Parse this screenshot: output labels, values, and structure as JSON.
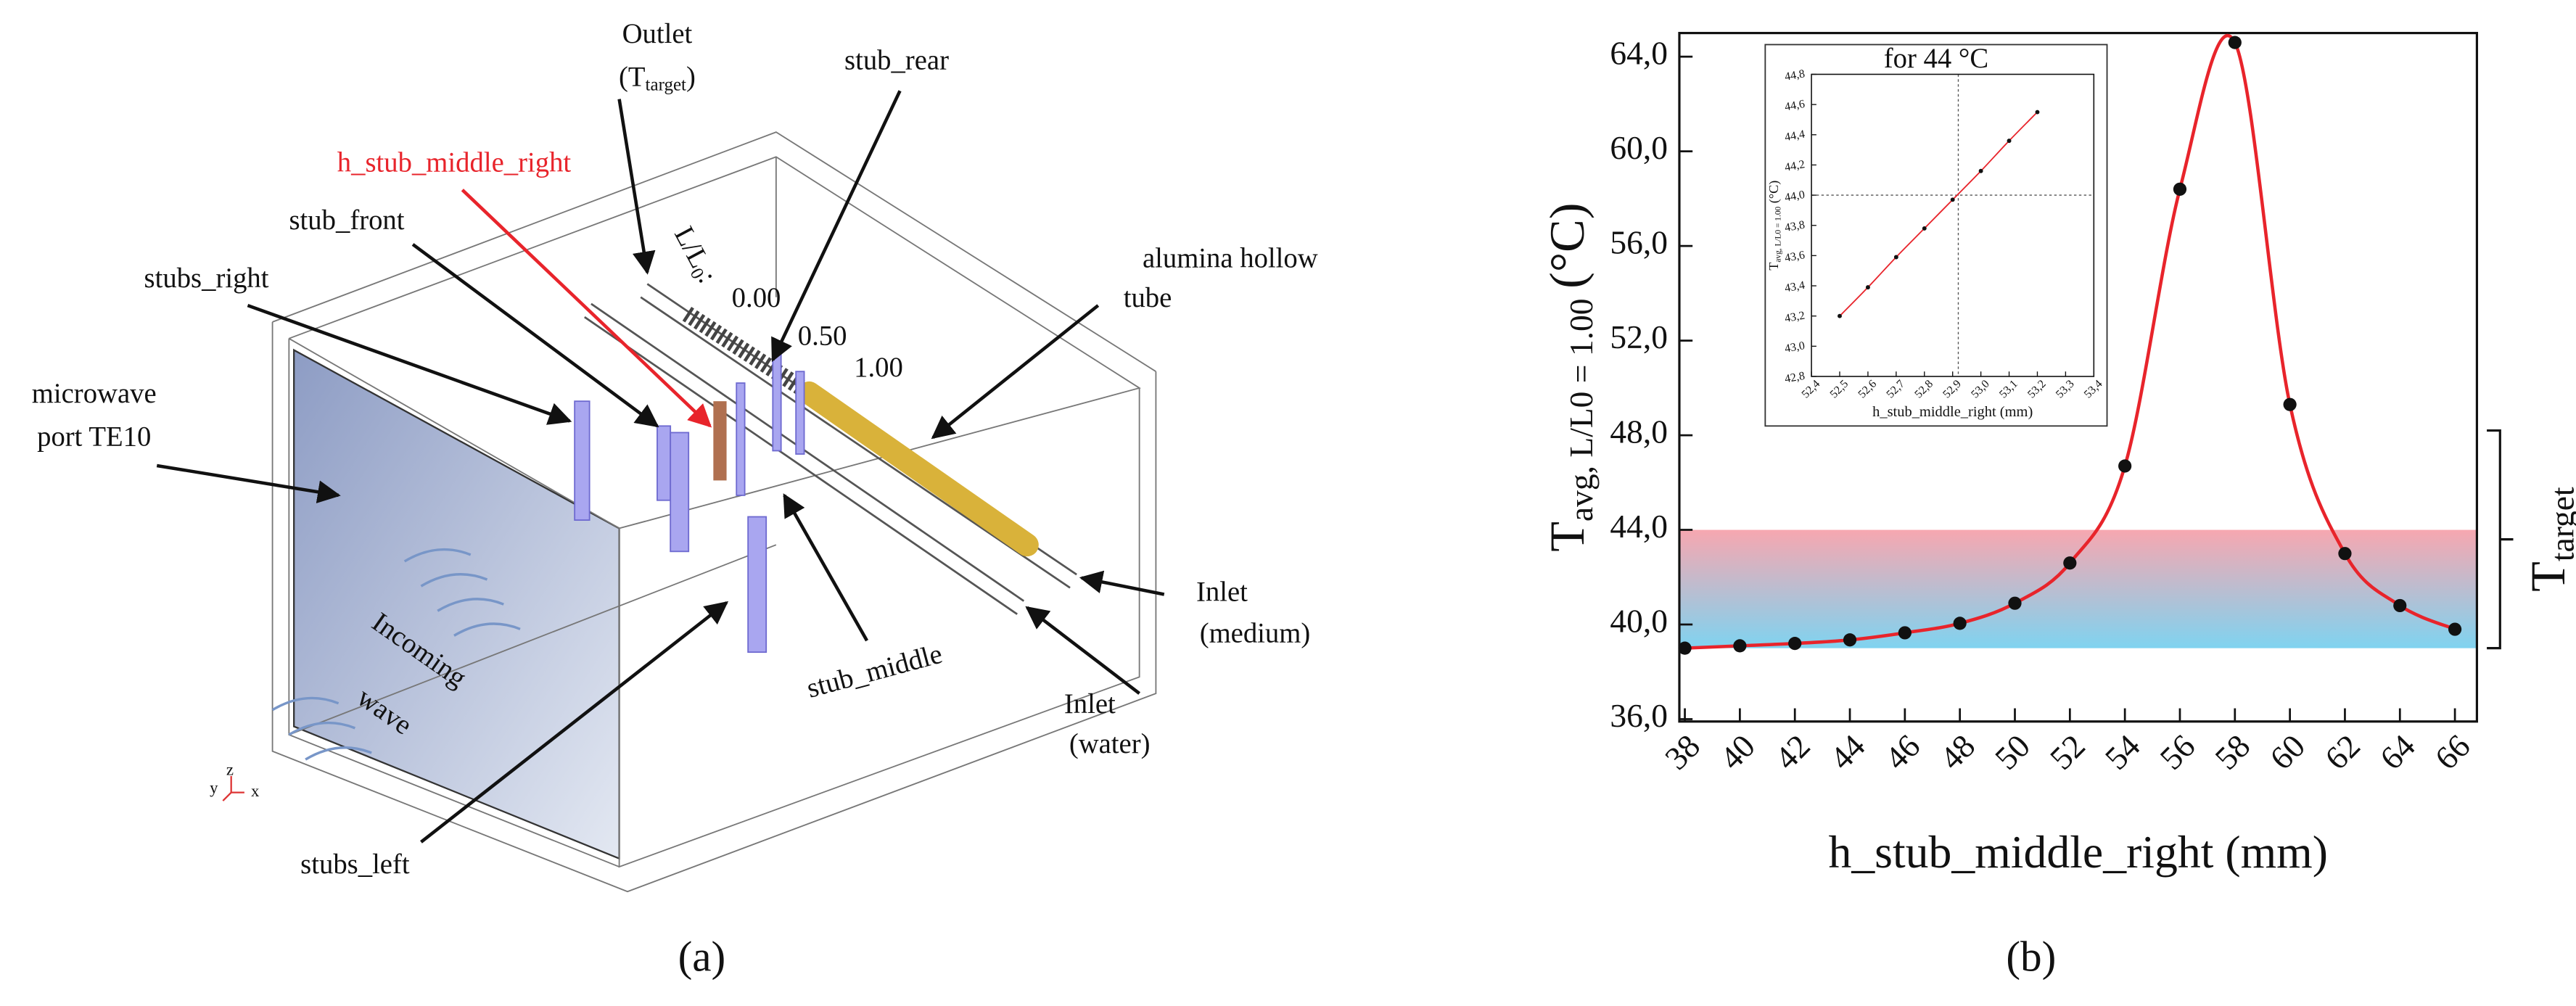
{
  "diagram": {
    "outlet": "Outlet",
    "outlet_t": "(T",
    "outlet_sub": "target",
    "outlet_close": ")",
    "stub_rear": "stub_rear",
    "h_stub": "h_stub_middle_right",
    "stub_front": "stub_front",
    "stubs_right": "stubs_right",
    "port_1": "microwave",
    "port_2": "port TE10",
    "tube_1": "alumina hollow",
    "tube_2": "tube",
    "ll": "L/L",
    "ll_sub": "0",
    "ll_colon": ":",
    "pos_0": "0.00",
    "pos_1": "0.50",
    "pos_2": "1.00",
    "inlet_m": "Inlet",
    "inlet_m2": "(medium)",
    "inlet_w": "Inlet",
    "inlet_w2": "(water)",
    "stub_middle": "stub_middle",
    "incoming": "Incoming",
    "wave": "wave",
    "stubs_left": "stubs_left",
    "axis_y": "y",
    "axis_z": "z",
    "axis_x": "x",
    "panel": "(a)"
  },
  "panel_b": "(b)",
  "chart_data": [
    {
      "type": "line",
      "x_label": "h_stub_middle_right (mm)",
      "y_label": "T",
      "y_label_sub": "avg, L/L0 = 1.00",
      "y_label_unit": "(°C)",
      "x": [
        38,
        40,
        42,
        44,
        46,
        48,
        50,
        52,
        54,
        56,
        58,
        60,
        62,
        64,
        66
      ],
      "values": [
        39.0,
        39.1,
        39.2,
        39.35,
        39.65,
        40.05,
        40.9,
        42.6,
        46.7,
        58.4,
        64.6,
        49.3,
        43.0,
        40.8,
        39.8
      ],
      "line_color": "#e8242b",
      "marker_color": "#111111",
      "xlim": [
        37.8,
        66.8
      ],
      "ylim": [
        35.9,
        65
      ],
      "xticks": [
        38,
        40,
        42,
        44,
        46,
        48,
        50,
        52,
        54,
        56,
        58,
        60,
        62,
        64,
        66
      ],
      "yticks": [
        {
          "value": 36,
          "label": "36,0"
        },
        {
          "value": 40,
          "label": "40,0"
        },
        {
          "value": 44,
          "label": "44,0"
        },
        {
          "value": 48,
          "label": "48,0"
        },
        {
          "value": 52,
          "label": "52,0"
        },
        {
          "value": 56,
          "label": "56,0"
        },
        {
          "value": 60,
          "label": "60,0"
        },
        {
          "value": 64,
          "label": "64,0"
        }
      ],
      "band": [
        39,
        44
      ],
      "band_colors": [
        "#f7a7b0",
        "#7fd3f0"
      ],
      "target_bracket": [
        39,
        48.2
      ],
      "target_label": "T",
      "target_sub": "target",
      "grid": false
    },
    {
      "type": "line",
      "title": "for 44 °C",
      "x_label": "h_stub_middle_right (mm)",
      "y_label": "T",
      "y_label_sub": "avg, L/L0 = 1.00",
      "y_label_unit": "(°C)",
      "x": [
        52.5,
        52.6,
        52.7,
        52.8,
        52.9,
        53.0,
        53.1,
        53.2
      ],
      "values": [
        43.2,
        43.39,
        43.59,
        43.78,
        43.97,
        44.16,
        44.36,
        44.55
      ],
      "line_color": "#e8242b",
      "marker_color": "#111111",
      "xlim": [
        52.4,
        53.4
      ],
      "ylim": [
        42.8,
        44.8
      ],
      "xticks": [
        {
          "value": 52.4,
          "label": "52,4"
        },
        {
          "value": 52.5,
          "label": "52,5"
        },
        {
          "value": 52.6,
          "label": "52,6"
        },
        {
          "value": 52.7,
          "label": "52,7"
        },
        {
          "value": 52.8,
          "label": "52,8"
        },
        {
          "value": 52.9,
          "label": "52,9"
        },
        {
          "value": 53.0,
          "label": "53,0"
        },
        {
          "value": 53.1,
          "label": "53,1"
        },
        {
          "value": 53.2,
          "label": "53,2"
        },
        {
          "value": 53.3,
          "label": "53,3"
        },
        {
          "value": 53.4,
          "label": "53,4"
        }
      ],
      "yticks": [
        {
          "value": 42.8,
          "label": "42,8"
        },
        {
          "value": 43.0,
          "label": "43,0"
        },
        {
          "value": 43.2,
          "label": "43,2"
        },
        {
          "value": 43.4,
          "label": "43,4"
        },
        {
          "value": 43.6,
          "label": "43,6"
        },
        {
          "value": 43.8,
          "label": "43,8"
        },
        {
          "value": 44.0,
          "label": "44,0"
        },
        {
          "value": 44.2,
          "label": "44,2"
        },
        {
          "value": 44.4,
          "label": "44,4"
        },
        {
          "value": 44.6,
          "label": "44,6"
        },
        {
          "value": 44.8,
          "label": "44,8"
        }
      ],
      "crosshair": [
        52.92,
        44.0
      ],
      "grid": false
    }
  ]
}
